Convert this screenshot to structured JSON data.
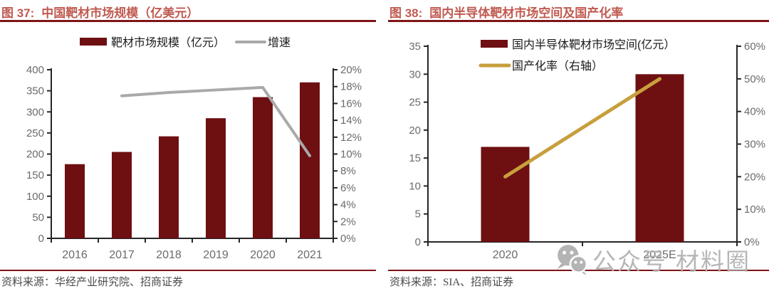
{
  "figures": [
    {
      "number": "图 37:",
      "title": "中国靶材市场规模（亿美元）",
      "source": "资料来源：华经产业研究院、招商证券"
    },
    {
      "number": "图 38:",
      "title": "国内半导体靶材市场空间及国产化率",
      "source": "资料来源：SIA、招商证券"
    }
  ],
  "watermark": {
    "icon": "wechat-icon",
    "text1": "公众号",
    "text2": "材料圈"
  },
  "colors": {
    "title": "#C05A50",
    "rule": "#7E1416",
    "bar": "#6E0F12",
    "growth_line": "#A9A9A9",
    "localization_line": "#C79F3C",
    "axis": "#262626",
    "axis_label": "#6B6B6B",
    "legend_text": "#1a1a1a",
    "source_text": "#4a4a4a",
    "watermark": "#b3b3b3"
  },
  "chart_data": [
    {
      "type": "bar",
      "title": "中国靶材市场规模（亿美元）",
      "categories": [
        "2016",
        "2017",
        "2018",
        "2019",
        "2020",
        "2021"
      ],
      "series": [
        {
          "name": "靶材市场规模（亿元）",
          "type": "bar",
          "axis": "left",
          "color": "#6E0F12",
          "values": [
            176,
            205,
            242,
            285,
            335,
            370
          ]
        },
        {
          "name": "增速",
          "type": "line",
          "axis": "right",
          "color": "#A9A9A9",
          "start_index": 1,
          "values": [
            16.9,
            17.3,
            17.6,
            17.9,
            9.8
          ]
        }
      ],
      "left_axis": {
        "min": 0,
        "max": 400,
        "step": 50,
        "suffix": ""
      },
      "right_axis": {
        "min": 0,
        "max": 20,
        "step": 2,
        "suffix": "%"
      },
      "legend_position": "top",
      "grid": false
    },
    {
      "type": "bar",
      "title": "国内半导体靶材市场空间及国产化率",
      "categories": [
        "2020",
        "2025E"
      ],
      "series": [
        {
          "name": "国内半导体靶材市场空间(亿元）",
          "type": "bar",
          "axis": "left",
          "color": "#6E0F12",
          "values": [
            17,
            30
          ]
        },
        {
          "name": "国产化率（右轴）",
          "type": "line",
          "axis": "right",
          "color": "#C79F3C",
          "start_index": 0,
          "values": [
            20,
            50
          ]
        }
      ],
      "left_axis": {
        "min": 0,
        "max": 35,
        "step": 5,
        "suffix": ""
      },
      "right_axis": {
        "min": 0,
        "max": 60,
        "step": 10,
        "suffix": "%"
      },
      "legend_position": "top",
      "grid": false
    }
  ]
}
